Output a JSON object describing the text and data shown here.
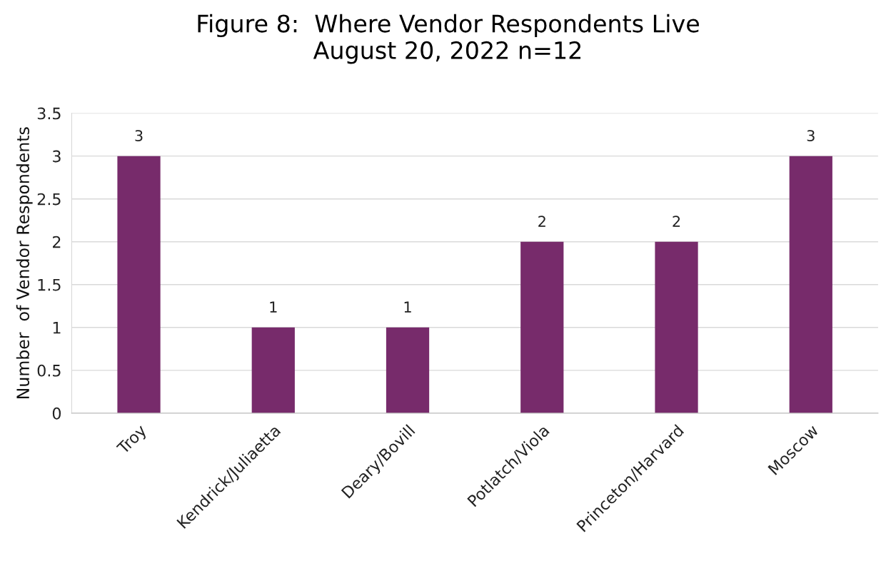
{
  "chart_data": {
    "type": "bar",
    "title": "Figure 8:  Where Vendor Respondents Live\nAugust 20, 2022 n=12",
    "ylabel": "Number  of Vendor Respondents",
    "categories": [
      "Troy",
      "Kendrick/Juliaetta",
      "Deary/Bovill",
      "Potlatch/Viola",
      "Princeton/Harvard",
      "Moscow"
    ],
    "values": [
      3,
      1,
      1,
      2,
      2,
      3
    ],
    "color": "#772b6b",
    "ylim": [
      0,
      3.5
    ],
    "yticks": [
      0,
      0.5,
      1,
      1.5,
      2,
      2.5,
      3,
      3.5
    ],
    "grid": "y",
    "data_labels": true,
    "legend": false
  }
}
